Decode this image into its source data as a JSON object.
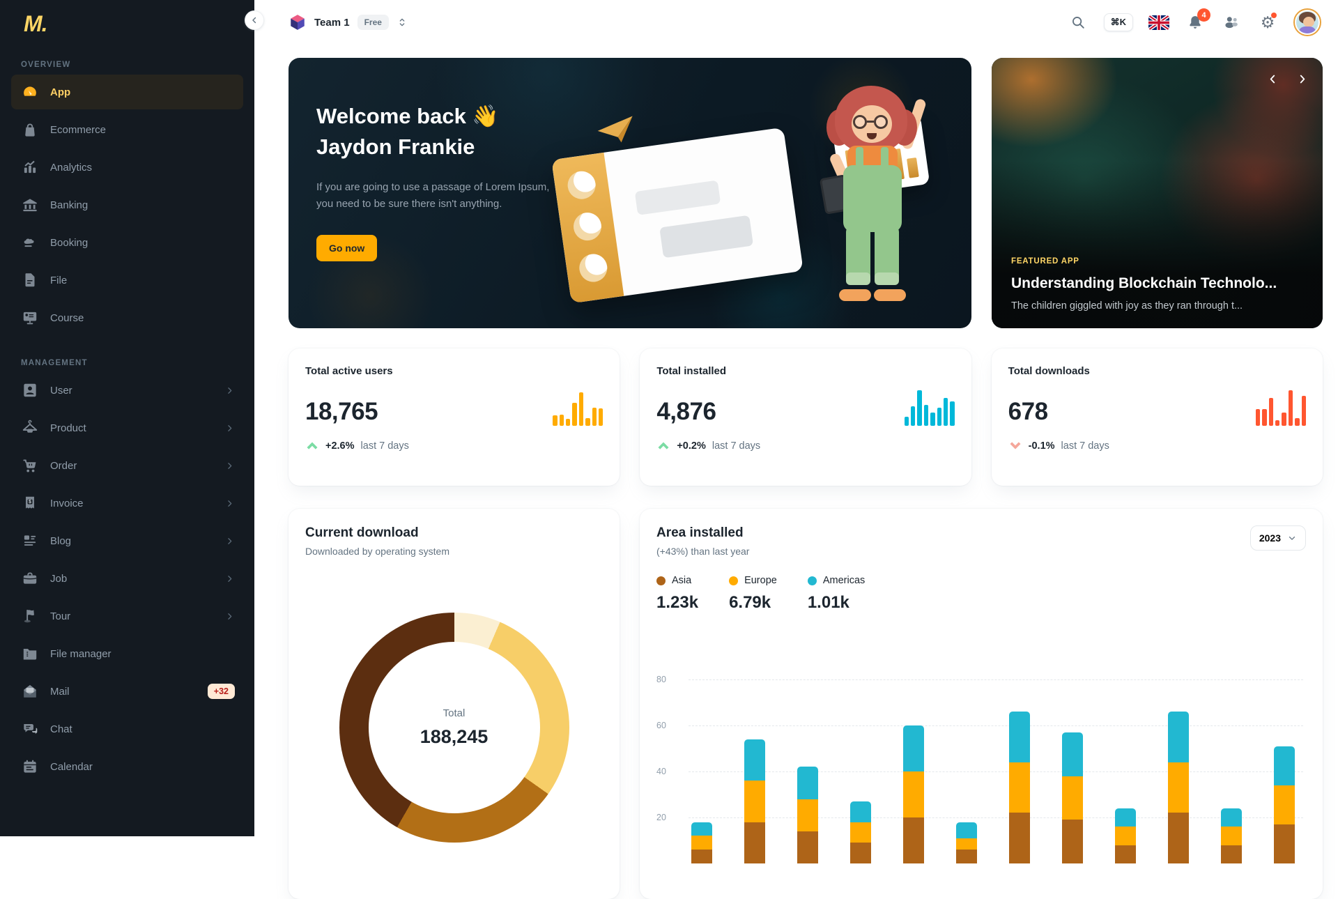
{
  "brand": {
    "logo_text": "M."
  },
  "topbar": {
    "team_name": "Team 1",
    "plan_badge": "Free",
    "shortcut": "⌘K",
    "notifications_count": "4"
  },
  "sidebar": {
    "sections": [
      {
        "label": "OVERVIEW",
        "items": [
          {
            "label": "App",
            "icon": "gauge",
            "active": true
          },
          {
            "label": "Ecommerce",
            "icon": "shopping-bag"
          },
          {
            "label": "Analytics",
            "icon": "analytics"
          },
          {
            "label": "Banking",
            "icon": "bank"
          },
          {
            "label": "Booking",
            "icon": "booking"
          },
          {
            "label": "File",
            "icon": "file"
          },
          {
            "label": "Course",
            "icon": "course"
          }
        ]
      },
      {
        "label": "MANAGEMENT",
        "items": [
          {
            "label": "User",
            "icon": "user",
            "expandable": true
          },
          {
            "label": "Product",
            "icon": "hanger",
            "expandable": true
          },
          {
            "label": "Order",
            "icon": "cart",
            "expandable": true
          },
          {
            "label": "Invoice",
            "icon": "invoice",
            "expandable": true
          },
          {
            "label": "Blog",
            "icon": "blog",
            "expandable": true
          },
          {
            "label": "Job",
            "icon": "briefcase",
            "expandable": true
          },
          {
            "label": "Tour",
            "icon": "flag",
            "expandable": true
          },
          {
            "label": "File manager",
            "icon": "folder-zip"
          },
          {
            "label": "Mail",
            "icon": "mail-open",
            "badge": "+32"
          },
          {
            "label": "Chat",
            "icon": "chat"
          },
          {
            "label": "Calendar",
            "icon": "calendar"
          }
        ]
      }
    ]
  },
  "banner": {
    "greeting_line1": "Welcome back 👋",
    "greeting_line2": "Jaydon Frankie",
    "body": "If you are going to use a passage of Lorem Ipsum, you need to be sure there isn't anything.",
    "cta": "Go now"
  },
  "featured": {
    "overline": "FEATURED APP",
    "title": "Understanding Blockchain Technolo...",
    "description": "The children giggled with joy as they ran through t..."
  },
  "stats": [
    {
      "label": "Total active users",
      "value": "18,765",
      "trend": "+2.6%",
      "period": "last 7 days",
      "direction": "up"
    },
    {
      "label": "Total installed",
      "value": "4,876",
      "trend": "+0.2%",
      "period": "last 7 days",
      "direction": "up"
    },
    {
      "label": "Total downloads",
      "value": "678",
      "trend": "-0.1%",
      "period": "last 7 days",
      "direction": "down"
    }
  ],
  "downloads_card": {
    "title": "Current download",
    "subtitle": "Downloaded by operating system"
  },
  "area_card": {
    "title": "Area installed",
    "subtitle": "(+43%) than last year",
    "year": "2023"
  },
  "chart_data": [
    {
      "id": "active-users-sparkline",
      "type": "bar",
      "color": "#FFAB00",
      "values": [
        28,
        30,
        18,
        62,
        88,
        20,
        48,
        46
      ]
    },
    {
      "id": "installed-sparkline",
      "type": "bar",
      "color": "#00B8D9",
      "values": [
        25,
        52,
        95,
        55,
        35,
        48,
        75,
        65
      ]
    },
    {
      "id": "downloads-sparkline",
      "type": "bar",
      "color": "#FF5630",
      "values": [
        45,
        45,
        75,
        15,
        35,
        95,
        20,
        80
      ]
    },
    {
      "id": "current-download-donut",
      "type": "pie",
      "title": "Current download",
      "center_label": "Total",
      "center_value": "188,245",
      "segments": [
        {
          "pct": 6.5,
          "color": "#FBEFD2"
        },
        {
          "pct": 28.3,
          "color": "#F7CE68"
        },
        {
          "pct": 23.5,
          "color": "#B26F16"
        },
        {
          "pct": 41.7,
          "color": "#5C2E10"
        }
      ]
    },
    {
      "id": "area-installed-stacked-bars",
      "type": "bar",
      "stacked": true,
      "title": "Area installed",
      "ylim": [
        0,
        80
      ],
      "yticks": [
        80,
        60,
        40,
        20
      ],
      "legend_totals": [
        "1.23k",
        "6.79k",
        "1.01k"
      ],
      "series": [
        {
          "name": "Asia",
          "color": "#AE6418",
          "values": [
            6,
            18,
            14,
            9,
            20,
            6,
            22,
            19,
            8,
            22,
            8,
            17
          ]
        },
        {
          "name": "Europe",
          "color": "#FFAB00",
          "values": [
            6,
            18,
            14,
            9,
            20,
            5,
            22,
            19,
            8,
            22,
            8,
            17
          ]
        },
        {
          "name": "Americas",
          "color": "#22B8D1",
          "values": [
            6,
            18,
            14,
            9,
            20,
            7,
            22,
            19,
            8,
            22,
            8,
            17
          ]
        }
      ]
    }
  ]
}
